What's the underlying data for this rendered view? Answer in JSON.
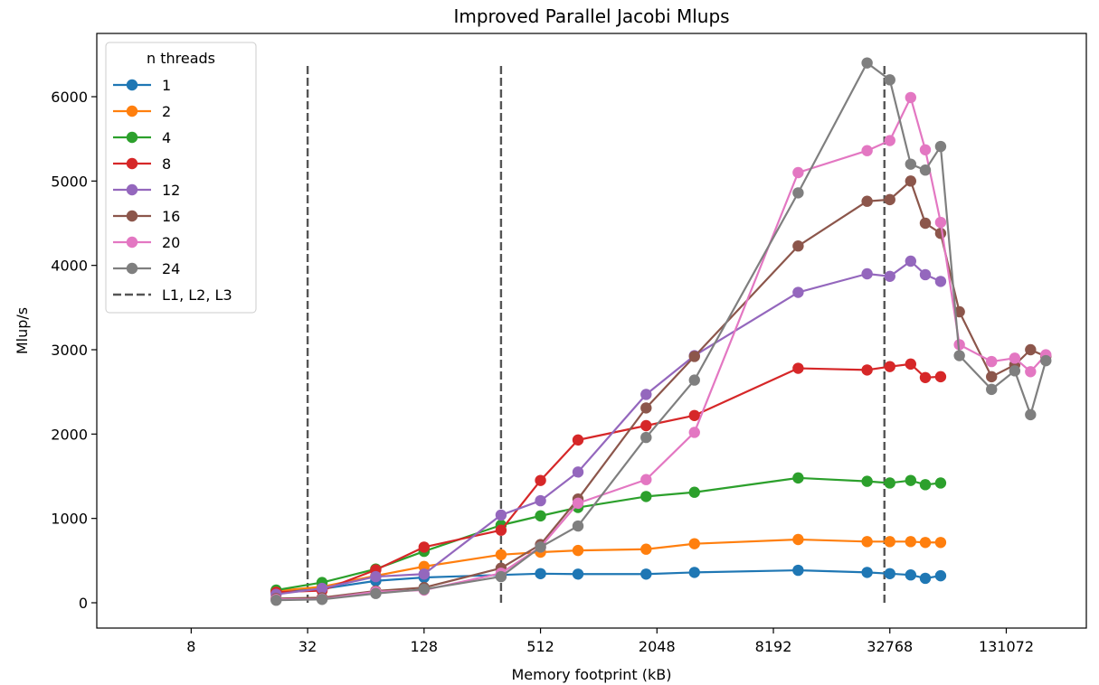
{
  "chart_data": {
    "type": "line",
    "title": "Improved Parallel Jacobi Mlups",
    "xlabel": "Memory footprint (kB)",
    "ylabel": "Mlup/s",
    "xscale": "log2",
    "xlim": [
      2.6,
      340000
    ],
    "ylim": [
      -300,
      6750
    ],
    "xticks": [
      8,
      32,
      128,
      512,
      2048,
      8192,
      32768,
      131072
    ],
    "xtick_labels": [
      "8",
      "32",
      "128",
      "512",
      "2048",
      "8192",
      "32768",
      "131072"
    ],
    "yticks": [
      0,
      1000,
      2000,
      3000,
      4000,
      5000,
      6000
    ],
    "ytick_labels": [
      "0",
      "1000",
      "2000",
      "3000",
      "4000",
      "5000",
      "6000"
    ],
    "grid": false,
    "legend": {
      "title": "n threads",
      "position": "top-left"
    },
    "series": [
      {
        "name": "1",
        "color": "#1f77b4",
        "x": [
          22,
          38,
          72,
          128,
          320,
          512,
          800,
          1800,
          3200,
          11000,
          25000,
          32768,
          42000,
          50000,
          60000
        ],
        "y": [
          130,
          165,
          260,
          300,
          330,
          345,
          340,
          340,
          360,
          385,
          360,
          345,
          330,
          290,
          320
        ]
      },
      {
        "name": "2",
        "color": "#ff7f0e",
        "x": [
          22,
          38,
          72,
          128,
          320,
          512,
          800,
          1800,
          3200,
          11000,
          25000,
          32768,
          42000,
          50000,
          60000
        ],
        "y": [
          140,
          190,
          320,
          430,
          570,
          600,
          620,
          635,
          700,
          750,
          725,
          725,
          725,
          715,
          715
        ]
      },
      {
        "name": "4",
        "color": "#2ca02c",
        "x": [
          22,
          38,
          72,
          128,
          320,
          512,
          800,
          1800,
          3200,
          11000,
          25000,
          32768,
          42000,
          50000,
          60000
        ],
        "y": [
          150,
          240,
          400,
          610,
          920,
          1030,
          1130,
          1260,
          1310,
          1480,
          1440,
          1420,
          1450,
          1400,
          1420
        ]
      },
      {
        "name": "8",
        "color": "#d62728",
        "x": [
          22,
          38,
          72,
          128,
          320,
          512,
          800,
          1800,
          3200,
          11000,
          25000,
          32768,
          42000,
          50000,
          60000
        ],
        "y": [
          125,
          145,
          390,
          660,
          860,
          1450,
          1930,
          2100,
          2220,
          2780,
          2760,
          2800,
          2830,
          2670,
          2680
        ]
      },
      {
        "name": "12",
        "color": "#9467bd",
        "x": [
          22,
          38,
          72,
          128,
          320,
          512,
          800,
          1800,
          3200,
          11000,
          25000,
          32768,
          42000,
          50000,
          60000
        ],
        "y": [
          100,
          170,
          310,
          340,
          1040,
          1210,
          1550,
          2470,
          2930,
          3680,
          3900,
          3870,
          4050,
          3890,
          3810
        ]
      },
      {
        "name": "16",
        "color": "#8c564b",
        "x": [
          22,
          38,
          72,
          128,
          320,
          512,
          800,
          1800,
          3200,
          11000,
          25000,
          32768,
          42000,
          50000,
          60000,
          75000,
          110000,
          145000,
          175000,
          210000
        ],
        "y": [
          50,
          60,
          140,
          180,
          410,
          690,
          1230,
          2310,
          2920,
          4230,
          4760,
          4780,
          5000,
          4500,
          4380,
          3450,
          2680,
          2820,
          3000,
          2920
        ]
      },
      {
        "name": "20",
        "color": "#e377c2",
        "x": [
          22,
          38,
          72,
          128,
          320,
          512,
          800,
          1800,
          3200,
          11000,
          25000,
          32768,
          42000,
          50000,
          60000,
          75000,
          110000,
          145000,
          175000,
          210000
        ],
        "y": [
          40,
          45,
          130,
          150,
          350,
          660,
          1180,
          1460,
          2020,
          5100,
          5360,
          5480,
          5990,
          5370,
          4510,
          3060,
          2860,
          2900,
          2740,
          2940
        ]
      },
      {
        "name": "24",
        "color": "#7f7f7f",
        "x": [
          22,
          38,
          72,
          128,
          320,
          512,
          800,
          1800,
          3200,
          11000,
          25000,
          32768,
          42000,
          50000,
          60000,
          75000,
          110000,
          145000,
          175000,
          210000
        ],
        "y": [
          30,
          40,
          110,
          160,
          310,
          660,
          910,
          1960,
          2640,
          4860,
          6400,
          6200,
          5200,
          5130,
          5410,
          2930,
          2530,
          2750,
          2230,
          2870
        ]
      }
    ],
    "reference_lines": {
      "label": "L1, L2, L3",
      "color": "#555555",
      "style": "dashed",
      "x": [
        32,
        320,
        30720
      ],
      "y_range": [
        0,
        6400
      ]
    }
  }
}
